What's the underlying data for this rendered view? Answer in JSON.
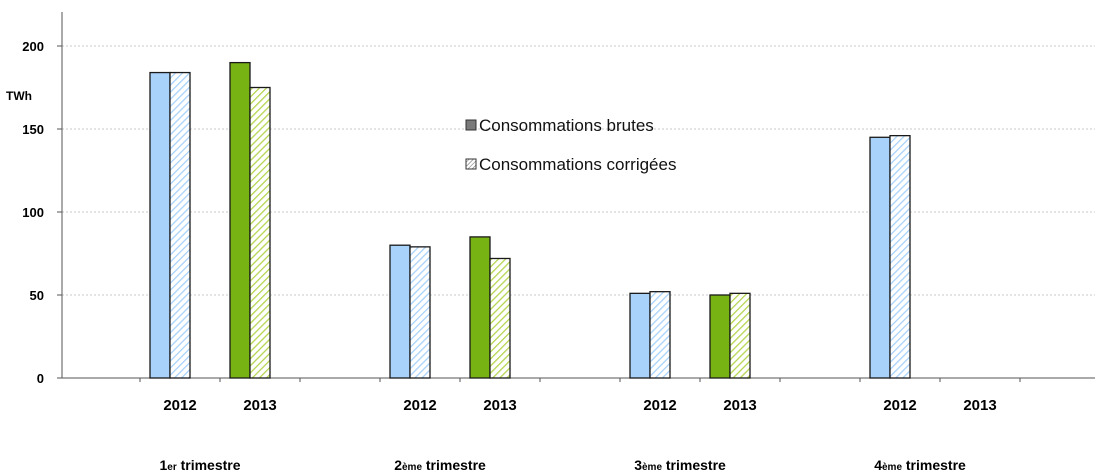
{
  "chart_data": {
    "type": "bar",
    "ylabel": "TWh",
    "ylim": [
      0,
      200
    ],
    "yticks": [
      0,
      50,
      100,
      150,
      200
    ],
    "grid": true,
    "legend_position": "center",
    "legend": [
      {
        "label": "Consommations brutes",
        "swatch": "solid"
      },
      {
        "label": "Consommations corrigées",
        "swatch": "hatched"
      }
    ],
    "colors": {
      "2012": "#a9d2fb",
      "2013": "#77b312",
      "hatch_2012": "#a9d2fb",
      "hatch_2013": "#c9e37a",
      "outline": "#1a1a1a",
      "grid": "#c8c8c8"
    },
    "series": [
      {
        "name": "Consommations brutes",
        "kind": "solid"
      },
      {
        "name": "Consommations corrigées",
        "kind": "hatched"
      }
    ],
    "groups": [
      {
        "label_prefix": "1",
        "label_sup": "er",
        "label_suffix": " trimestre",
        "years": [
          {
            "year": "2012",
            "brutes": 184,
            "corrigees": 184
          },
          {
            "year": "2013",
            "brutes": 190,
            "corrigees": 175
          }
        ]
      },
      {
        "label_prefix": "2",
        "label_sup": "ème",
        "label_suffix": " trimestre",
        "years": [
          {
            "year": "2012",
            "brutes": 80,
            "corrigees": 79
          },
          {
            "year": "2013",
            "brutes": 85,
            "corrigees": 72
          }
        ]
      },
      {
        "label_prefix": "3",
        "label_sup": "ème",
        "label_suffix": " trimestre",
        "years": [
          {
            "year": "2012",
            "brutes": 51,
            "corrigees": 52
          },
          {
            "year": "2013",
            "brutes": 50,
            "corrigees": 51
          }
        ]
      },
      {
        "label_prefix": "4",
        "label_sup": "ème",
        "label_suffix": " trimestre",
        "years": [
          {
            "year": "2012",
            "brutes": 145,
            "corrigees": 146
          },
          {
            "year": "2013",
            "brutes": null,
            "corrigees": null
          }
        ]
      }
    ]
  }
}
